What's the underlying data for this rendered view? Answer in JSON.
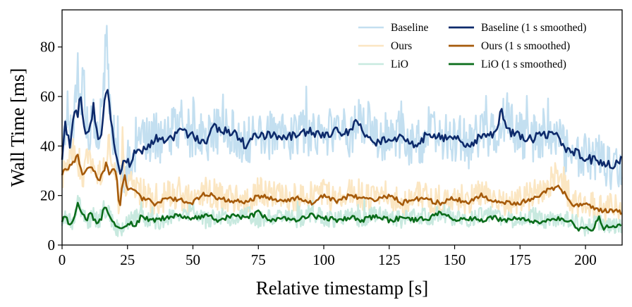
{
  "chart_data": {
    "type": "line",
    "title": "",
    "xlabel": "Relative timestamp [s]",
    "ylabel": "Wall Time [ms]",
    "xlim": [
      0,
      214
    ],
    "ylim": [
      0,
      95
    ],
    "xticks": [
      0,
      25,
      50,
      75,
      100,
      125,
      150,
      175,
      200
    ],
    "yticks": [
      0,
      20,
      40,
      60,
      80
    ],
    "grid": false,
    "legend_position": "top-right",
    "series": [
      {
        "name": "Baseline",
        "kind": "raw",
        "color": "#c3dff0",
        "x": [
          0,
          2,
          4,
          6,
          7,
          8,
          10,
          12,
          14,
          16,
          17,
          18,
          20,
          22,
          24,
          26,
          30,
          35,
          40,
          45,
          50,
          55,
          60,
          65,
          70,
          75,
          80,
          85,
          90,
          95,
          100,
          105,
          110,
          115,
          120,
          125,
          130,
          135,
          140,
          145,
          150,
          155,
          160,
          165,
          170,
          175,
          180,
          185,
          190,
          192,
          195,
          200,
          205,
          210,
          214
        ],
        "values": [
          36,
          55,
          42,
          74,
          52,
          70,
          40,
          52,
          45,
          64,
          93,
          58,
          42,
          33,
          30,
          34,
          40,
          44,
          42,
          50,
          44,
          43,
          47,
          46,
          40,
          46,
          44,
          43,
          45,
          46,
          44,
          48,
          45,
          52,
          42,
          44,
          45,
          40,
          46,
          42,
          44,
          40,
          46,
          45,
          52,
          44,
          43,
          46,
          44,
          38,
          38,
          36,
          35,
          32,
          34
        ]
      },
      {
        "name": "Ours",
        "kind": "raw",
        "color": "#fbe6c2",
        "x": [
          0,
          2,
          4,
          6,
          8,
          10,
          12,
          14,
          16,
          18,
          20,
          22,
          23,
          24,
          26,
          30,
          35,
          40,
          45,
          50,
          55,
          60,
          65,
          70,
          75,
          80,
          85,
          90,
          95,
          100,
          105,
          110,
          115,
          120,
          125,
          130,
          135,
          140,
          145,
          150,
          155,
          160,
          165,
          170,
          175,
          180,
          185,
          190,
          195,
          200,
          205,
          210,
          214
        ],
        "values": [
          28,
          34,
          38,
          30,
          28,
          36,
          30,
          28,
          33,
          40,
          32,
          15,
          46,
          22,
          26,
          22,
          17,
          20,
          19,
          18,
          22,
          20,
          19,
          17,
          22,
          20,
          19,
          20,
          18,
          21,
          18,
          22,
          20,
          19,
          21,
          17,
          20,
          19,
          18,
          20,
          18,
          21,
          19,
          17,
          18,
          20,
          24,
          30,
          17,
          18,
          14,
          15,
          14
        ]
      },
      {
        "name": "LiO",
        "kind": "raw",
        "color": "#c8e9df",
        "x": [
          0,
          2,
          4,
          6,
          8,
          10,
          12,
          14,
          16,
          18,
          20,
          22,
          24,
          26,
          30,
          35,
          40,
          45,
          50,
          55,
          60,
          65,
          70,
          75,
          80,
          85,
          90,
          95,
          100,
          105,
          110,
          115,
          120,
          125,
          130,
          135,
          140,
          145,
          150,
          155,
          160,
          165,
          170,
          175,
          180,
          185,
          190,
          195,
          200,
          205,
          210,
          214
        ],
        "values": [
          9,
          12,
          8,
          17,
          13,
          10,
          12,
          9,
          15,
          12,
          8,
          6,
          7,
          10,
          12,
          9,
          11,
          12,
          14,
          10,
          12,
          11,
          13,
          10,
          11,
          12,
          10,
          13,
          11,
          10,
          12,
          10,
          13,
          11,
          10,
          12,
          11,
          13,
          11,
          10,
          12,
          11,
          10,
          11,
          12,
          10,
          11,
          10,
          7,
          9,
          8,
          8
        ]
      },
      {
        "name": "Baseline (1 s smoothed)",
        "kind": "smoothed",
        "color": "#0d2a6b",
        "x": [
          0,
          1,
          2,
          3,
          5,
          6,
          7,
          8,
          9,
          10,
          12,
          14,
          15,
          16,
          17,
          18,
          19,
          20,
          21,
          22,
          24,
          26,
          28,
          30,
          33,
          36,
          40,
          45,
          50,
          55,
          58,
          62,
          66,
          70,
          75,
          80,
          85,
          90,
          95,
          100,
          105,
          110,
          112,
          115,
          120,
          125,
          130,
          135,
          140,
          145,
          150,
          155,
          160,
          165,
          168,
          170,
          175,
          180,
          185,
          190,
          192,
          195,
          200,
          205,
          210,
          214
        ],
        "values": [
          34,
          50,
          45,
          40,
          56,
          50,
          63,
          52,
          46,
          44,
          56,
          40,
          45,
          55,
          65,
          56,
          50,
          41,
          35,
          30,
          34,
          33,
          38,
          37,
          40,
          43,
          41,
          46,
          44,
          41,
          48,
          46,
          46,
          40,
          45,
          44,
          43,
          45,
          46,
          44,
          46,
          45,
          51,
          46,
          41,
          43,
          44,
          40,
          45,
          43,
          44,
          40,
          44,
          45,
          54,
          46,
          44,
          43,
          45,
          44,
          39,
          38,
          35,
          34,
          32,
          35
        ]
      },
      {
        "name": "Ours (1 s smoothed)",
        "kind": "smoothed",
        "color": "#a55a0a",
        "x": [
          0,
          1,
          2,
          4,
          6,
          8,
          10,
          12,
          14,
          16,
          17,
          18,
          20,
          21,
          22,
          23,
          24,
          25,
          27,
          30,
          33,
          36,
          40,
          45,
          50,
          55,
          60,
          65,
          70,
          75,
          80,
          85,
          90,
          95,
          100,
          105,
          110,
          115,
          120,
          125,
          130,
          135,
          140,
          145,
          150,
          155,
          160,
          165,
          170,
          175,
          180,
          185,
          190,
          193,
          195,
          200,
          205,
          210,
          214
        ],
        "values": [
          28,
          32,
          30,
          33,
          36,
          28,
          32,
          30,
          26,
          30,
          33,
          28,
          31,
          26,
          14,
          25,
          28,
          22,
          23,
          19,
          18,
          16,
          19,
          18,
          17,
          21,
          19,
          18,
          17,
          20,
          19,
          18,
          19,
          17,
          20,
          18,
          20,
          19,
          18,
          20,
          17,
          19,
          18,
          17,
          19,
          17,
          20,
          18,
          17,
          17,
          19,
          22,
          24,
          19,
          16,
          17,
          14,
          14,
          13
        ]
      },
      {
        "name": "LiO (1 s smoothed)",
        "kind": "smoothed",
        "color": "#0a6c1a",
        "x": [
          0,
          1,
          3,
          5,
          6,
          7,
          9,
          11,
          13,
          15,
          16,
          17,
          19,
          20,
          22,
          24,
          25,
          28,
          30,
          35,
          40,
          45,
          50,
          55,
          60,
          65,
          70,
          75,
          80,
          85,
          90,
          95,
          100,
          105,
          110,
          115,
          120,
          125,
          130,
          135,
          140,
          145,
          150,
          155,
          160,
          165,
          170,
          175,
          180,
          185,
          190,
          195,
          198,
          200,
          203,
          205,
          207,
          210,
          214
        ],
        "values": [
          9,
          12,
          8,
          11,
          17,
          14,
          10,
          13,
          9,
          11,
          15,
          14,
          10,
          8,
          6,
          7,
          9,
          8,
          11,
          10,
          11,
          12,
          11,
          12,
          10,
          12,
          11,
          13,
          10,
          11,
          10,
          12,
          11,
          10,
          11,
          10,
          12,
          10,
          11,
          10,
          11,
          13,
          10,
          11,
          10,
          11,
          10,
          11,
          9,
          10,
          11,
          9,
          6,
          7,
          6,
          12,
          7,
          8,
          8
        ]
      }
    ]
  }
}
